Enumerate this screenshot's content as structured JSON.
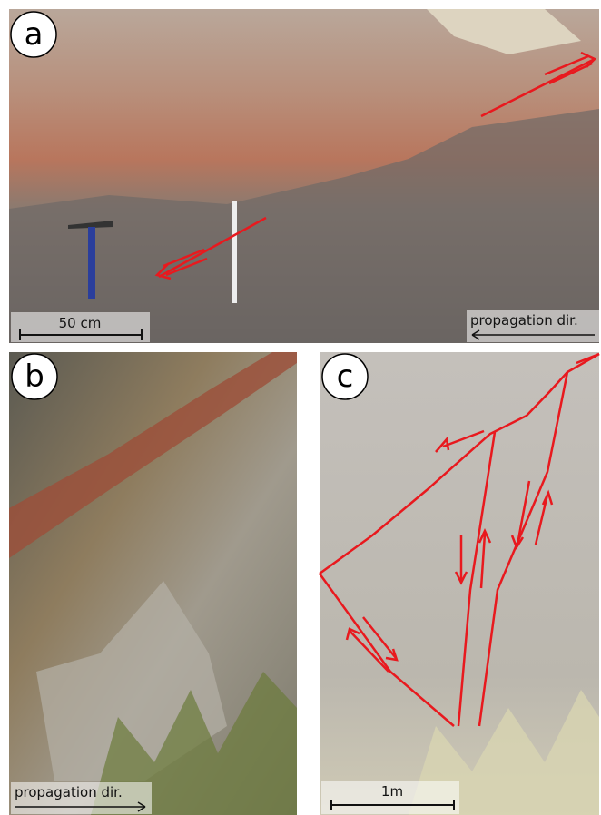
{
  "panels": [
    {
      "label": "a",
      "scale_bar": "50 cm",
      "direction_note": "propagation dir."
    },
    {
      "label": "b",
      "direction_note": "propagation dir."
    },
    {
      "label": "c",
      "scale_bar": "1m"
    }
  ]
}
